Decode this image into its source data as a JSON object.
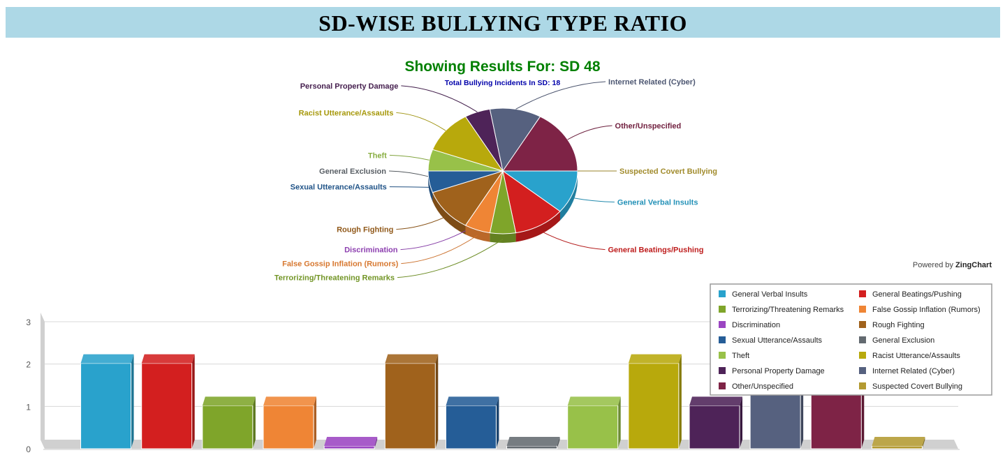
{
  "header": {
    "title": "SD-WISE BULLYING TYPE RATIO"
  },
  "summary": {
    "results_label": "Showing Results For: SD 48",
    "total_label": "Total Bullying Incidents In SD: 18"
  },
  "footer": {
    "powered_prefix": "Powered by",
    "powered_brand": "ZingChart"
  },
  "chart_data": [
    {
      "type": "pie",
      "categories": [
        "General Verbal Insults",
        "General Beatings/Pushing",
        "Terrorizing/Threatening Remarks",
        "False Gossip Inflation (Rumors)",
        "Discrimination",
        "Rough Fighting",
        "Sexual Utterance/Assaults",
        "General Exclusion",
        "Theft",
        "Racist Utterance/Assaults",
        "Personal Property Damage",
        "Internet Related (Cyber)",
        "Other/Unspecified",
        "Suspected Covert Bullying"
      ],
      "values": [
        2,
        2,
        1,
        1,
        0,
        2,
        1,
        0,
        1,
        2,
        1,
        2,
        3,
        0
      ],
      "colors": [
        "#29a2cc",
        "#d31f1f",
        "#7fa52a",
        "#ef8535",
        "#9b45c2",
        "#a0621c",
        "#255d97",
        "#636a70",
        "#98c149",
        "#b8a90c",
        "#4e2358",
        "#56617f",
        "#7e2346",
        "#b39a31"
      ]
    },
    {
      "type": "bar",
      "categories": [
        "General Verbal Insults",
        "General Beatings/Pushing",
        "Terrorizing/Threatening Remarks",
        "False Gossip Inflation (Rumors)",
        "Discrimination",
        "Rough Fighting",
        "Sexual Utterance/Assaults",
        "General Exclusion",
        "Theft",
        "Racist Utterance/Assaults",
        "Personal Property Damage",
        "Internet Related (Cyber)",
        "Other/Unspecified",
        "Suspected Covert Bullying"
      ],
      "values": [
        2,
        2,
        1,
        1,
        0,
        2,
        1,
        0,
        1,
        2,
        1,
        2,
        3,
        0
      ],
      "yticks": [
        0,
        1,
        2,
        3
      ],
      "ylim": [
        0,
        3
      ],
      "legend": "top-right",
      "grid": true
    }
  ]
}
